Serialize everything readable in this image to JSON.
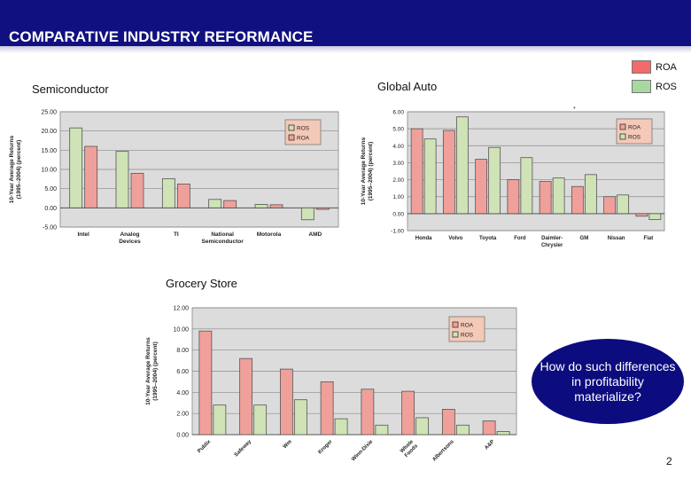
{
  "header": {
    "title": "COMPARATIVE INDUSTRY REFORMANCE"
  },
  "legend": {
    "roa_label": "ROA",
    "ros_label": "ROS",
    "roa_color": "#f26b6b",
    "ros_color": "#a8d8a0"
  },
  "labels": {
    "semiconductor": "Semiconductor",
    "global_auto": "Global Auto",
    "grocery": "Grocery Store"
  },
  "callout": {
    "text": "How do such differences in profitability materialize?"
  },
  "page_number": "2",
  "colors": {
    "roa": "#f0a09a",
    "ros": "#cfe3b6",
    "plot_bg": "#dcdcdc",
    "header": "#101080"
  },
  "chart_data": [
    {
      "id": "semiconductor",
      "type": "bar",
      "title": "Semiconductor",
      "ylabel": "10-Year Average Returns (1995–2004) (percent)",
      "ylim": [
        -5,
        25
      ],
      "yticks": [
        -5,
        0,
        5,
        10,
        15,
        20,
        25
      ],
      "ytick_labels": [
        "-5.00",
        "0.00",
        "5.00",
        "10.00",
        "15.00",
        "20.00",
        "25.00"
      ],
      "categories": [
        [
          "Intel"
        ],
        [
          "Analog",
          "Devices"
        ],
        [
          "TI"
        ],
        [
          "National",
          "Semiconductor"
        ],
        [
          "Motorola"
        ],
        [
          "AMD"
        ]
      ],
      "series": [
        {
          "name": "ROS",
          "values": [
            20.8,
            14.7,
            7.6,
            2.2,
            0.9,
            -3.1
          ]
        },
        {
          "name": "ROA",
          "values": [
            16.0,
            9.0,
            6.2,
            1.9,
            0.8,
            -0.4
          ]
        }
      ],
      "legend_entries": [
        "ROS",
        "ROA"
      ],
      "legend_position": "top-right"
    },
    {
      "id": "global_auto",
      "type": "bar",
      "title": "Global Auto",
      "ylabel": "10-Year Average Returns (1995–2004) (percent)",
      "ylim": [
        -1,
        6
      ],
      "yticks": [
        -1,
        0,
        1,
        2,
        3,
        4,
        5,
        6
      ],
      "ytick_labels": [
        "-1.00",
        "0.00",
        "1.00",
        "2.00",
        "3.00",
        "4.00",
        "5.00",
        "6.00"
      ],
      "categories": [
        [
          "Honda"
        ],
        [
          "Volvo"
        ],
        [
          "Toyota"
        ],
        [
          "Ford"
        ],
        [
          "Daimler-",
          "Chrysler"
        ],
        [
          "GM"
        ],
        [
          "Nissan"
        ],
        [
          "Fiat"
        ]
      ],
      "series": [
        {
          "name": "ROA",
          "values": [
            5.0,
            4.9,
            3.2,
            2.0,
            1.9,
            1.6,
            1.0,
            -0.15
          ]
        },
        {
          "name": "ROS",
          "values": [
            4.4,
            5.7,
            3.9,
            3.3,
            2.1,
            2.3,
            1.1,
            -0.35
          ]
        }
      ],
      "legend_entries": [
        "ROA",
        "ROS"
      ],
      "legend_position": "top-right"
    },
    {
      "id": "grocery",
      "type": "bar",
      "title": "Grocery Store",
      "ylabel": "10-Year Average Returns (1995–2004) (percent)",
      "ylim": [
        0,
        12
      ],
      "yticks": [
        0,
        2,
        4,
        6,
        8,
        10,
        12
      ],
      "ytick_labels": [
        "0.00",
        "2.00",
        "4.00",
        "6.00",
        "8.00",
        "10.00",
        "12.00"
      ],
      "categories": [
        [
          "Publix"
        ],
        [
          "Safeway"
        ],
        [
          "Wm"
        ],
        [
          "Kroger"
        ],
        [
          "Winn-Dixie"
        ],
        [
          "Whole",
          "Foods"
        ],
        [
          "Albertsons"
        ],
        [
          "A&P"
        ]
      ],
      "series": [
        {
          "name": "ROA",
          "values": [
            9.8,
            7.2,
            6.2,
            5.0,
            4.3,
            4.1,
            2.4,
            1.3
          ]
        },
        {
          "name": "ROS",
          "values": [
            2.8,
            2.8,
            3.3,
            1.5,
            0.9,
            1.6,
            0.9,
            0.3
          ]
        }
      ],
      "legend_entries": [
        "ROA",
        "ROS"
      ],
      "legend_position": "top-right"
    }
  ]
}
